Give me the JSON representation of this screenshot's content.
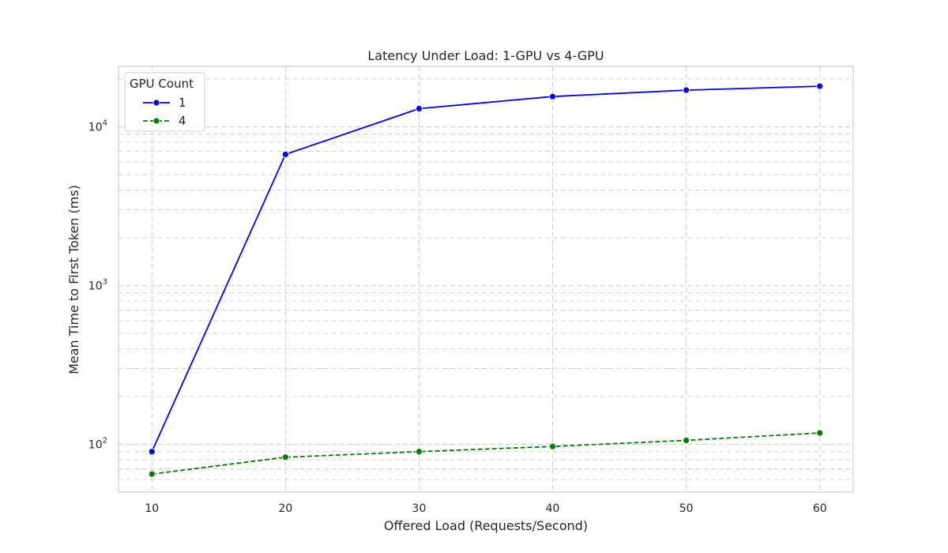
{
  "chart_data": {
    "type": "line",
    "title": "Latency Under Load: 1-GPU vs 4-GPU",
    "xlabel": "Offered Load (Requests/Second)",
    "ylabel": "Mean Time to First Token (ms)",
    "y_scale": "log",
    "x_ticks": [
      10,
      20,
      30,
      40,
      50,
      60
    ],
    "y_major_ticks": [
      {
        "value": 100,
        "base": "10",
        "exp": "2"
      },
      {
        "value": 1000,
        "base": "10",
        "exp": "3"
      },
      {
        "value": 10000,
        "base": "10",
        "exp": "4"
      }
    ],
    "xlim": [
      7.5,
      62.5
    ],
    "ylim": [
      50,
      24000
    ],
    "grid": true,
    "legend": {
      "title": "GPU Count",
      "position": "top-left"
    },
    "series": [
      {
        "name": "1",
        "color": "#0000ff",
        "line_style": "solid",
        "x": [
          10,
          20,
          30,
          40,
          50,
          60
        ],
        "values": [
          90,
          6700,
          13000,
          15500,
          17000,
          18000
        ]
      },
      {
        "name": "4",
        "color": "#008000",
        "line_style": "dashed",
        "x": [
          10,
          20,
          30,
          40,
          50,
          60
        ],
        "values": [
          65,
          83,
          90,
          97,
          106,
          118
        ]
      }
    ]
  }
}
